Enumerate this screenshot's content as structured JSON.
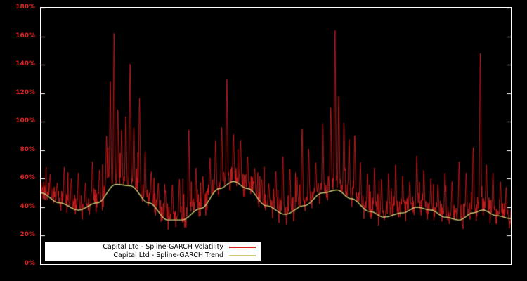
{
  "page": {
    "background": "#000000",
    "plot_border_color": "#ffffff",
    "axis_label_color": "#dd2222"
  },
  "legend": {
    "items": [
      {
        "label": "Capital Ltd - Spline-GARCH Volatility",
        "color": "#dd2222"
      },
      {
        "label": "Capital Ltd - Spline-GARCH Trend",
        "color": "#cccc77"
      }
    ]
  },
  "chart_data": {
    "type": "line",
    "title": "",
    "xlabel": "",
    "ylabel": "",
    "ylim": [
      0,
      180
    ],
    "xlim": [
      0,
      1
    ],
    "grid": false,
    "legend_position": "bottom-left",
    "y_ticks": [
      "0%",
      "20%",
      "40%",
      "60%",
      "80%",
      "100%",
      "120%",
      "140%",
      "160%",
      "180%"
    ],
    "y_tick_values": [
      0,
      20,
      40,
      60,
      80,
      100,
      120,
      140,
      160,
      180
    ],
    "series": [
      {
        "name": "Capital Ltd - Spline-GARCH Volatility",
        "color": "#dd2222",
        "style": "noisy-line",
        "seed": 1337,
        "points_count": 1400,
        "noise_amplitude": 9,
        "burst_chance": 0.1,
        "burst_amplitude": 22,
        "floor": 24,
        "spike_width": 0.0018,
        "spikes": [
          [
            0.02,
            63
          ],
          [
            0.035,
            57
          ],
          [
            0.05,
            68
          ],
          [
            0.065,
            60
          ],
          [
            0.08,
            64
          ],
          [
            0.095,
            57
          ],
          [
            0.11,
            72
          ],
          [
            0.125,
            66
          ],
          [
            0.14,
            90
          ],
          [
            0.148,
            128
          ],
          [
            0.156,
            163
          ],
          [
            0.164,
            110
          ],
          [
            0.172,
            95
          ],
          [
            0.181,
            104
          ],
          [
            0.19,
            141
          ],
          [
            0.198,
            96
          ],
          [
            0.21,
            117
          ],
          [
            0.222,
            80
          ],
          [
            0.235,
            65
          ],
          [
            0.25,
            57
          ],
          [
            0.265,
            52
          ],
          [
            0.28,
            56
          ],
          [
            0.295,
            60
          ],
          [
            0.315,
            95
          ],
          [
            0.33,
            68
          ],
          [
            0.345,
            62
          ],
          [
            0.36,
            75
          ],
          [
            0.372,
            88
          ],
          [
            0.385,
            97
          ],
          [
            0.396,
            130
          ],
          [
            0.41,
            92
          ],
          [
            0.425,
            88
          ],
          [
            0.44,
            76
          ],
          [
            0.455,
            68
          ],
          [
            0.47,
            60
          ],
          [
            0.485,
            57
          ],
          [
            0.5,
            66
          ],
          [
            0.515,
            77
          ],
          [
            0.53,
            68
          ],
          [
            0.545,
            62
          ],
          [
            0.556,
            95
          ],
          [
            0.57,
            82
          ],
          [
            0.585,
            72
          ],
          [
            0.6,
            100
          ],
          [
            0.617,
            110
          ],
          [
            0.626,
            165
          ],
          [
            0.634,
            118
          ],
          [
            0.645,
            100
          ],
          [
            0.656,
            88
          ],
          [
            0.668,
            92
          ],
          [
            0.68,
            72
          ],
          [
            0.695,
            64
          ],
          [
            0.71,
            68
          ],
          [
            0.725,
            60
          ],
          [
            0.74,
            64
          ],
          [
            0.755,
            70
          ],
          [
            0.77,
            62
          ],
          [
            0.785,
            58
          ],
          [
            0.8,
            76
          ],
          [
            0.815,
            66
          ],
          [
            0.83,
            60
          ],
          [
            0.845,
            56
          ],
          [
            0.86,
            64
          ],
          [
            0.875,
            58
          ],
          [
            0.89,
            72
          ],
          [
            0.905,
            64
          ],
          [
            0.92,
            82
          ],
          [
            0.935,
            148
          ],
          [
            0.948,
            70
          ],
          [
            0.962,
            64
          ],
          [
            0.978,
            58
          ],
          [
            0.99,
            54
          ]
        ]
      },
      {
        "name": "Capital Ltd - Spline-GARCH Trend",
        "color": "#cccc77",
        "style": "smooth-line",
        "keypoints": [
          [
            0.0,
            50
          ],
          [
            0.04,
            43
          ],
          [
            0.08,
            38
          ],
          [
            0.12,
            43
          ],
          [
            0.16,
            56
          ],
          [
            0.19,
            55
          ],
          [
            0.23,
            43
          ],
          [
            0.27,
            31
          ],
          [
            0.3,
            31
          ],
          [
            0.34,
            39
          ],
          [
            0.38,
            53
          ],
          [
            0.41,
            58
          ],
          [
            0.44,
            53
          ],
          [
            0.48,
            41
          ],
          [
            0.52,
            35
          ],
          [
            0.56,
            41
          ],
          [
            0.6,
            50
          ],
          [
            0.63,
            52
          ],
          [
            0.66,
            46
          ],
          [
            0.7,
            37
          ],
          [
            0.73,
            33
          ],
          [
            0.77,
            36
          ],
          [
            0.8,
            40
          ],
          [
            0.83,
            38
          ],
          [
            0.86,
            33
          ],
          [
            0.89,
            31
          ],
          [
            0.92,
            36
          ],
          [
            0.94,
            38
          ],
          [
            0.97,
            34
          ],
          [
            1.0,
            32
          ]
        ]
      }
    ]
  }
}
